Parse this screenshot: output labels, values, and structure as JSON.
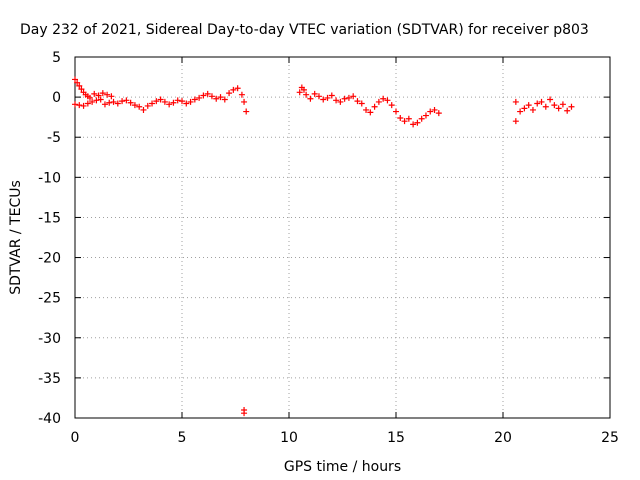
{
  "chart_data": {
    "type": "scatter",
    "title": "Day 232 of 2021, Sidereal Day-to-day VTEC variation (SDTVAR) for receiver p803",
    "xlabel": "GPS time / hours",
    "ylabel": "SDTVAR / TECUs",
    "xlim": [
      0,
      25
    ],
    "ylim": [
      -40,
      5
    ],
    "xticks": [
      0,
      5,
      10,
      15,
      20,
      25
    ],
    "yticks": [
      5,
      0,
      -5,
      -10,
      -15,
      -20,
      -25,
      -30,
      -35,
      -40
    ],
    "grid": true,
    "marker": "+",
    "color": "#ff0000",
    "series": [
      {
        "name": "SDTVAR",
        "points": [
          [
            0.0,
            2.2
          ],
          [
            0.1,
            1.8
          ],
          [
            0.2,
            1.4
          ],
          [
            0.3,
            1.0
          ],
          [
            0.4,
            0.6
          ],
          [
            0.5,
            0.3
          ],
          [
            0.6,
            0.1
          ],
          [
            0.7,
            -0.1
          ],
          [
            0.0,
            -0.9
          ],
          [
            0.2,
            -1.0
          ],
          [
            0.4,
            -1.1
          ],
          [
            0.6,
            -0.8
          ],
          [
            0.8,
            -0.6
          ],
          [
            1.0,
            -0.4
          ],
          [
            1.2,
            -0.3
          ],
          [
            0.9,
            0.4
          ],
          [
            1.1,
            0.2
          ],
          [
            1.3,
            0.5
          ],
          [
            1.5,
            0.3
          ],
          [
            1.7,
            0.1
          ],
          [
            1.4,
            -0.9
          ],
          [
            1.6,
            -0.7
          ],
          [
            1.8,
            -0.6
          ],
          [
            2.0,
            -0.8
          ],
          [
            2.2,
            -0.5
          ],
          [
            2.4,
            -0.4
          ],
          [
            2.6,
            -0.7
          ],
          [
            2.8,
            -1.0
          ],
          [
            3.0,
            -1.2
          ],
          [
            3.2,
            -1.6
          ],
          [
            3.4,
            -1.1
          ],
          [
            3.6,
            -0.8
          ],
          [
            3.8,
            -0.5
          ],
          [
            4.0,
            -0.3
          ],
          [
            4.2,
            -0.6
          ],
          [
            4.4,
            -0.9
          ],
          [
            4.6,
            -0.7
          ],
          [
            4.8,
            -0.4
          ],
          [
            5.0,
            -0.5
          ],
          [
            5.2,
            -0.8
          ],
          [
            5.4,
            -0.6
          ],
          [
            5.6,
            -0.3
          ],
          [
            5.8,
            -0.1
          ],
          [
            6.0,
            0.2
          ],
          [
            6.2,
            0.4
          ],
          [
            6.4,
            0.1
          ],
          [
            6.6,
            -0.2
          ],
          [
            6.8,
            0.0
          ],
          [
            7.0,
            -0.3
          ],
          [
            7.2,
            0.5
          ],
          [
            7.4,
            0.9
          ],
          [
            7.6,
            1.1
          ],
          [
            7.8,
            0.3
          ],
          [
            7.9,
            -0.6
          ],
          [
            8.0,
            -1.8
          ],
          [
            7.9,
            -39.0
          ],
          [
            7.9,
            -39.4
          ],
          [
            10.5,
            0.6
          ],
          [
            10.6,
            1.2
          ],
          [
            10.7,
            0.9
          ],
          [
            10.8,
            0.3
          ],
          [
            11.0,
            -0.2
          ],
          [
            11.2,
            0.4
          ],
          [
            11.4,
            0.1
          ],
          [
            11.6,
            -0.3
          ],
          [
            11.8,
            -0.1
          ],
          [
            12.0,
            0.2
          ],
          [
            12.2,
            -0.4
          ],
          [
            12.4,
            -0.6
          ],
          [
            12.6,
            -0.2
          ],
          [
            12.8,
            -0.1
          ],
          [
            13.0,
            0.1
          ],
          [
            13.2,
            -0.5
          ],
          [
            13.4,
            -0.8
          ],
          [
            13.6,
            -1.6
          ],
          [
            13.8,
            -1.9
          ],
          [
            14.0,
            -1.2
          ],
          [
            14.2,
            -0.6
          ],
          [
            14.4,
            -0.2
          ],
          [
            14.6,
            -0.4
          ],
          [
            14.8,
            -1.0
          ],
          [
            15.0,
            -1.8
          ],
          [
            15.2,
            -2.6
          ],
          [
            15.4,
            -3.0
          ],
          [
            15.6,
            -2.7
          ],
          [
            15.8,
            -3.4
          ],
          [
            16.0,
            -3.2
          ],
          [
            16.2,
            -2.7
          ],
          [
            16.4,
            -2.3
          ],
          [
            16.6,
            -1.8
          ],
          [
            16.8,
            -1.6
          ],
          [
            17.0,
            -2.0
          ],
          [
            20.6,
            -3.0
          ],
          [
            20.6,
            -0.6
          ],
          [
            20.8,
            -1.8
          ],
          [
            21.0,
            -1.4
          ],
          [
            21.2,
            -1.0
          ],
          [
            21.4,
            -1.6
          ],
          [
            21.6,
            -0.8
          ],
          [
            21.8,
            -0.6
          ],
          [
            22.0,
            -1.2
          ],
          [
            22.2,
            -0.3
          ],
          [
            22.4,
            -1.0
          ],
          [
            22.6,
            -1.4
          ],
          [
            22.8,
            -0.9
          ],
          [
            23.0,
            -1.7
          ],
          [
            23.2,
            -1.2
          ]
        ]
      }
    ]
  }
}
